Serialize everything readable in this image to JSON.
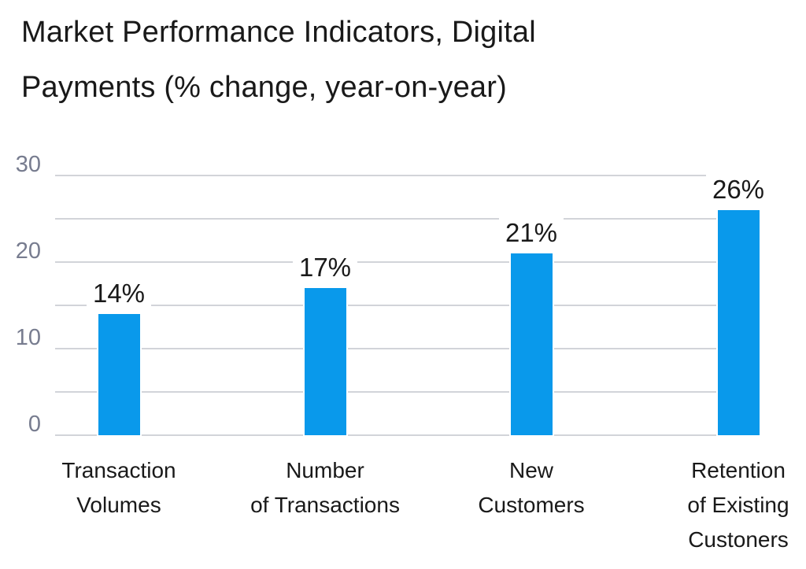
{
  "page": {
    "background": "#ffffff"
  },
  "chart_data": {
    "type": "bar",
    "title": "Market Performance Indicators, Digital Payments (% change, year-on-year)",
    "title_lines": [
      "Market Performance Indicators, Digital",
      "Payments (% change, year-on-year)"
    ],
    "categories": [
      "Transaction Volumes",
      "Number of Transactions",
      "New Customers",
      "Retention of Existing Custoners"
    ],
    "category_lines": [
      [
        "Transaction",
        "Volumes"
      ],
      [
        "Number",
        "of Transactions"
      ],
      [
        "New",
        "Customers"
      ],
      [
        "Retention",
        "of Existing",
        "Custoners"
      ]
    ],
    "values": [
      14,
      17,
      21,
      26
    ],
    "value_labels": [
      "14%",
      "17%",
      "21%",
      "26%"
    ],
    "unit": "%",
    "ylim": [
      0,
      30
    ],
    "yticks": [
      0,
      10,
      20,
      30
    ],
    "gridline_step": 5,
    "grid": true,
    "legend": false,
    "xlabel": "",
    "ylabel": "",
    "colors": {
      "bar": "#0999eb",
      "gridline": "#d2d4d9",
      "axis_tick_text": "#777c8f",
      "text": "#191919",
      "background": "#ffffff"
    }
  }
}
